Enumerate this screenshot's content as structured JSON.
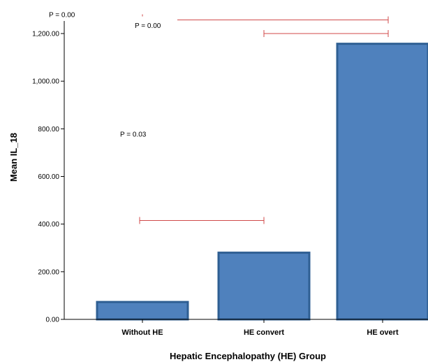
{
  "chart_data": {
    "type": "bar",
    "categories": [
      "Without HE",
      "HE convert",
      "HE overt"
    ],
    "values": [
      73,
      280,
      1157
    ],
    "xlabel": "Hepatic Encephalopathy (HE) Group",
    "ylabel": "Mean IL_18",
    "ylim": [
      0,
      1200
    ],
    "yticks": [
      0,
      200,
      400,
      600,
      800,
      1000,
      1200
    ],
    "ytick_labels": [
      "0.00",
      "200.00",
      "400.00",
      "600.00",
      "800.00",
      "1,000.00",
      "1,200.00"
    ],
    "bar_color": "#4f81bd",
    "bar_edge_color": "#2f5f93",
    "bracket_color": "#d04a4a",
    "grid": false,
    "annotations": [
      {
        "text": "P = 0.03",
        "from": "Without HE",
        "to": "HE convert",
        "y": 415
      },
      {
        "text": "P = 0.00",
        "from": "HE convert",
        "to": "HE overt",
        "y": 1200
      },
      {
        "text": "P = 0.00",
        "from": "Without HE",
        "to": "HE overt",
        "y": 1275
      }
    ]
  }
}
